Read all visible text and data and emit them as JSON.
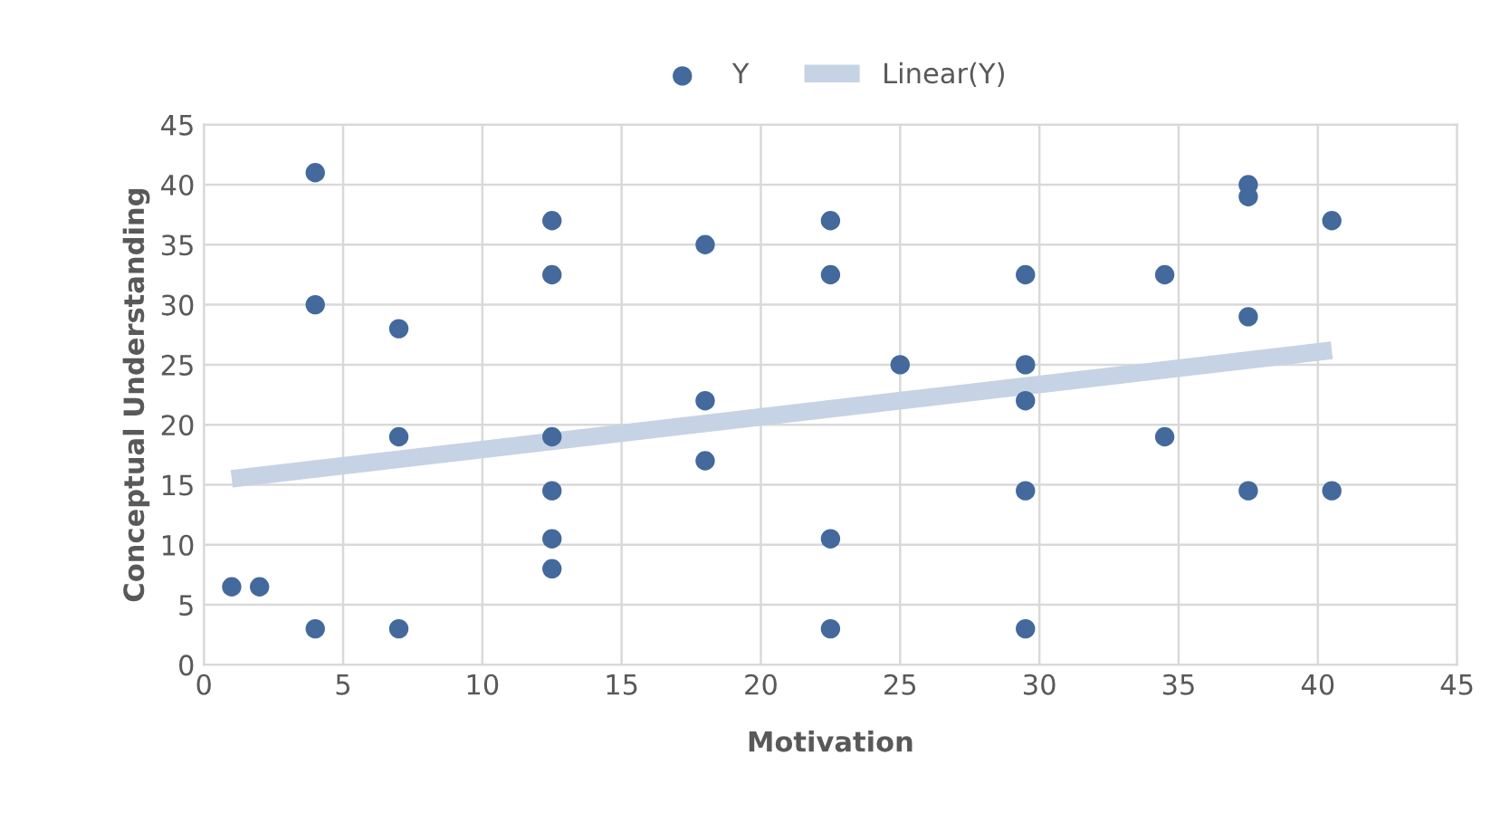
{
  "chart_data": {
    "type": "scatter",
    "xlabel": "Motivation",
    "ylabel": "Conceptual Understanding",
    "xlim": [
      0,
      45
    ],
    "xticks": [
      0,
      5,
      10,
      15,
      20,
      25,
      30,
      35,
      40,
      45
    ],
    "ylim": [
      0,
      45
    ],
    "yticks": [
      0,
      5,
      10,
      15,
      20,
      25,
      30,
      35,
      40,
      45
    ],
    "grid": true,
    "legend": "top",
    "series": [
      {
        "name": "Y",
        "marker": "circle",
        "color": "#44699c",
        "x": [
          1,
          2,
          4,
          4,
          4,
          7,
          7,
          7,
          12.5,
          12.5,
          12.5,
          12.5,
          12.5,
          12.5,
          18,
          18,
          18,
          22.5,
          22.5,
          22.5,
          22.5,
          25,
          29.5,
          29.5,
          29.5,
          29.5,
          29.5,
          34.5,
          34.5,
          37.5,
          37.5,
          37.5,
          37.5,
          40.5,
          40.5
        ],
        "values": [
          6.5,
          6.5,
          41,
          30,
          3,
          28,
          19,
          3,
          37,
          32.5,
          19,
          14.5,
          10.5,
          8,
          35,
          22,
          17,
          37,
          32.5,
          10.5,
          3,
          25,
          32.5,
          25,
          22,
          14.5,
          3,
          32.5,
          19,
          40,
          39,
          29,
          14.5,
          37,
          14.5
        ]
      },
      {
        "name": "Linear(Y)",
        "type": "line",
        "color": "#c5d3e4",
        "x": [
          1,
          40.5
        ],
        "values": [
          15.5,
          26.2
        ]
      }
    ]
  }
}
